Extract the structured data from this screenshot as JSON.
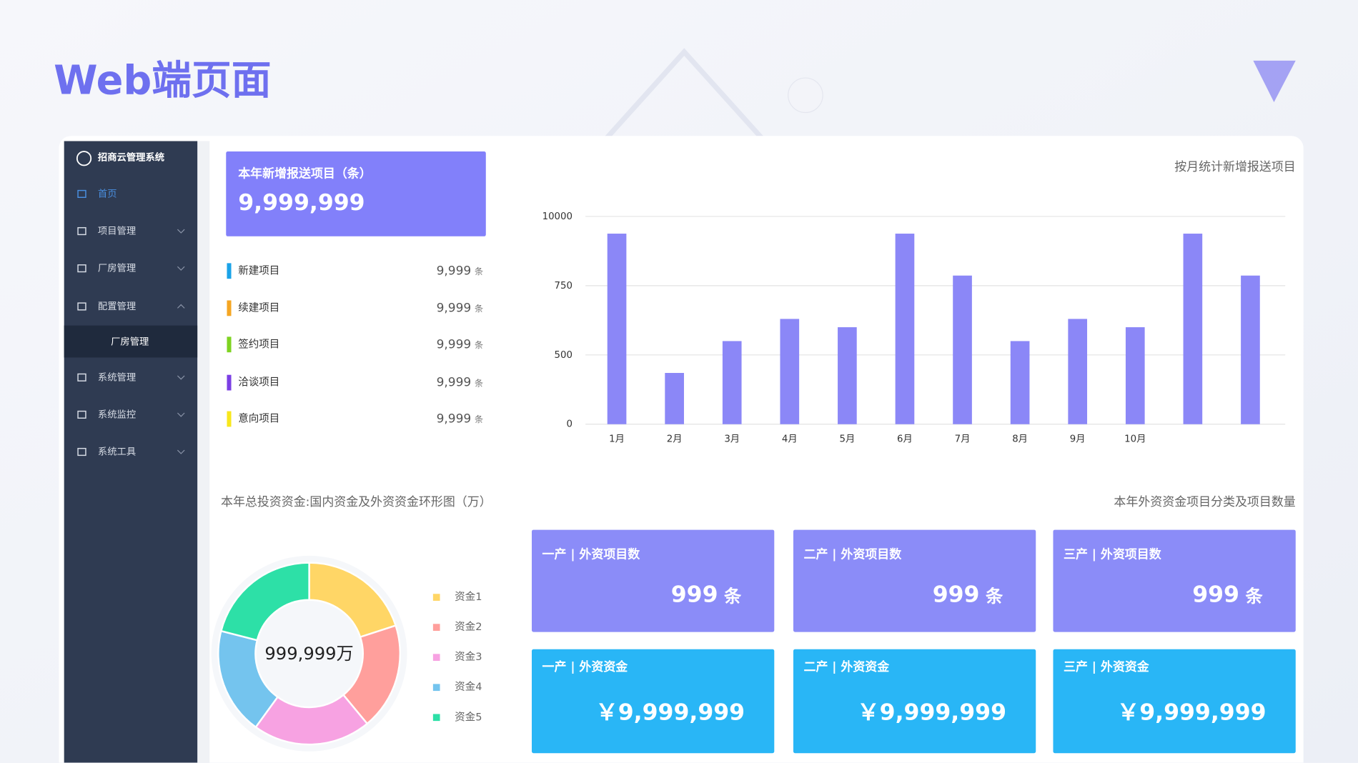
{
  "header": {
    "title": "Web端页面"
  },
  "sidebar": {
    "app_name": "招商云管理系统",
    "menu": [
      {
        "label": "首页"
      },
      {
        "label": "项目管理"
      },
      {
        "label": "厂房管理"
      },
      {
        "label": "配置管理",
        "children": [
          {
            "label": "厂房管理"
          }
        ]
      },
      {
        "label": "系统管理"
      },
      {
        "label": "系统监控"
      },
      {
        "label": "系统工具"
      }
    ]
  },
  "summary": {
    "title": "本年新增报送项目（条）",
    "value": "9,999,999",
    "items": [
      {
        "label": "新建项目",
        "value": "9,999",
        "unit": "条",
        "color": "#1aa3e8"
      },
      {
        "label": "续建项目",
        "value": "9,999",
        "unit": "条",
        "color": "#f5a623"
      },
      {
        "label": "签约项目",
        "value": "9,999",
        "unit": "条",
        "color": "#7ed321"
      },
      {
        "label": "洽谈项目",
        "value": "9,999",
        "unit": "条",
        "color": "#7b3fe4"
      },
      {
        "label": "意向项目",
        "value": "9,999",
        "unit": "条",
        "color": "#f8e71c"
      }
    ]
  },
  "bar_chart": {
    "type": "bar",
    "title": "按月统计新增报送项目",
    "categories": [
      "1月",
      "2月",
      "3月",
      "4月",
      "5月",
      "6月",
      "7月",
      "8月",
      "9月",
      "10月",
      null,
      null
    ],
    "values": [
      7700,
      370,
      550,
      630,
      600,
      7700,
      2100,
      550,
      630,
      600,
      7700,
      2100
    ],
    "color": "#8b87f7",
    "ylim": [
      0,
      10000
    ],
    "yticks": [
      0,
      500,
      750,
      10000
    ],
    "grid": true
  },
  "donut": {
    "type": "donut",
    "title": "本年总投资资金:国内资金及外资资金环形图（万）",
    "center_label": "999,999万",
    "categories": [
      "资金1",
      "资金2",
      "资金3",
      "资金4",
      "资金5"
    ],
    "values": [
      20,
      19,
      21,
      19,
      21
    ],
    "colors": [
      "#ffd666",
      "#ff9f9c",
      "#f7a2e2",
      "#74c4ee",
      "#2de0a7"
    ]
  },
  "foreign": {
    "title": "本年外资资金项目分类及项目数量",
    "count_cards": [
      {
        "label": "一产 | 外资项目数",
        "value": "999",
        "unit": "条"
      },
      {
        "label": "二产 | 外资项目数",
        "value": "999",
        "unit": "条"
      },
      {
        "label": "三产 | 外资项目数",
        "value": "999",
        "unit": "条"
      }
    ],
    "fund_cards": [
      {
        "label": "一产 | 外资资金",
        "value": "￥9,999,999"
      },
      {
        "label": "二产 | 外资资金",
        "value": "￥9,999,999"
      },
      {
        "label": "三产 | 外资资金",
        "value": "￥9,999,999"
      }
    ]
  }
}
